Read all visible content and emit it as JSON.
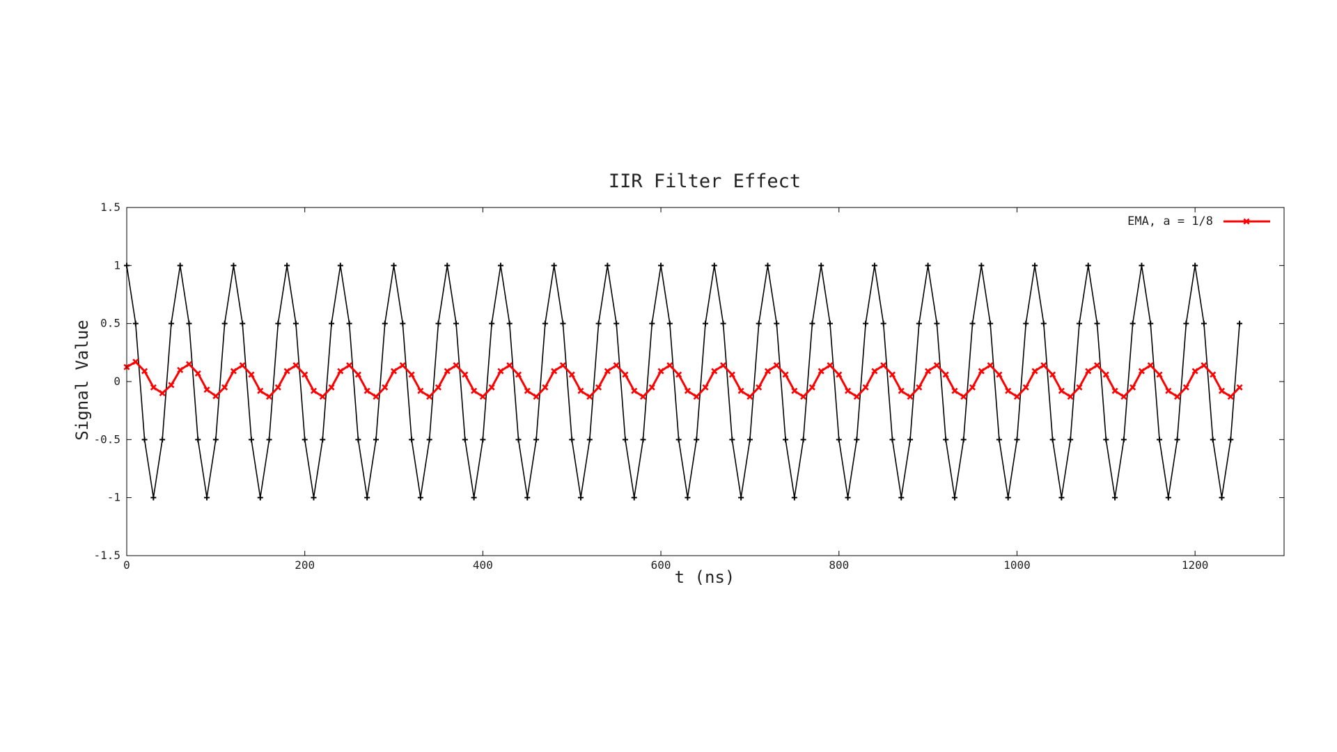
{
  "chart_data": {
    "type": "line",
    "title": "IIR Filter Effect",
    "xlabel": "t (ns)",
    "ylabel": "Signal Value",
    "xlim": [
      0,
      1300
    ],
    "ylim": [
      -1.5,
      1.5
    ],
    "x_ticks": [
      0,
      200,
      400,
      600,
      800,
      1000,
      1200
    ],
    "y_ticks": [
      -1.5,
      -1,
      -0.5,
      0,
      0.5,
      1,
      1.5
    ],
    "x_tick_labels": [
      "0",
      "200",
      "400",
      "600",
      "800",
      "1000",
      "1200"
    ],
    "y_tick_labels": [
      "-1.5",
      "-1",
      "-0.5",
      "0",
      "0.5",
      "1",
      "1.5"
    ],
    "grid": false,
    "legend_position": "top-right",
    "series": [
      {
        "name": "",
        "color": "#000000",
        "marker": "plus",
        "x": [
          0,
          10,
          20,
          30,
          40,
          50,
          60,
          70,
          80,
          90,
          100,
          110,
          120,
          130,
          140,
          150,
          160,
          170,
          180,
          190,
          200,
          210,
          220,
          230,
          240,
          250,
          260,
          270,
          280,
          290,
          300,
          310,
          320,
          330,
          340,
          350,
          360,
          370,
          380,
          390,
          400,
          410,
          420,
          430,
          440,
          450,
          460,
          470,
          480,
          490,
          500,
          510,
          520,
          530,
          540,
          550,
          560,
          570,
          580,
          590,
          600,
          610,
          620,
          630,
          640,
          650,
          660,
          670,
          680,
          690,
          700,
          710,
          720,
          730,
          740,
          750,
          760,
          770,
          780,
          790,
          800,
          810,
          820,
          830,
          840,
          850,
          860,
          870,
          880,
          890,
          900,
          910,
          920,
          930,
          940,
          950,
          960,
          970,
          980,
          990,
          1000,
          1010,
          1020,
          1030,
          1040,
          1050,
          1060,
          1070,
          1080,
          1090,
          1100,
          1110,
          1120,
          1130,
          1140,
          1150,
          1160,
          1170,
          1180,
          1190,
          1200,
          1210,
          1220,
          1230,
          1240,
          1250
        ],
        "y": [
          1,
          0.5,
          -0.5,
          -1,
          -0.5,
          0.5,
          1,
          0.5,
          -0.5,
          -1,
          -0.5,
          0.5,
          1,
          0.5,
          -0.5,
          -1,
          -0.5,
          0.5,
          1,
          0.5,
          -0.5,
          -1,
          -0.5,
          0.5,
          1,
          0.5,
          -0.5,
          -1,
          -0.5,
          0.5,
          1,
          0.5,
          -0.5,
          -1,
          -0.5,
          0.5,
          1,
          0.5,
          -0.5,
          -1,
          -0.5,
          0.5,
          1,
          0.5,
          -0.5,
          -1,
          -0.5,
          0.5,
          1,
          0.5,
          -0.5,
          -1,
          -0.5,
          0.5,
          1,
          0.5,
          -0.5,
          -1,
          -0.5,
          0.5,
          1,
          0.5,
          -0.5,
          -1,
          -0.5,
          0.5,
          1,
          0.5,
          -0.5,
          -1,
          -0.5,
          0.5,
          1,
          0.5,
          -0.5,
          -1,
          -0.5,
          0.5,
          1,
          0.5,
          -0.5,
          -1,
          -0.5,
          0.5,
          1,
          0.5,
          -0.5,
          -1,
          -0.5,
          0.5,
          1,
          0.5,
          -0.5,
          -1,
          -0.5,
          0.5,
          1,
          0.5,
          -0.5,
          -1,
          -0.5,
          0.5,
          1,
          0.5,
          -0.5,
          -1,
          -0.5,
          0.5,
          1,
          0.5,
          -0.5,
          -1,
          -0.5,
          0.5,
          1,
          0.5,
          -0.5,
          -1,
          -0.5,
          0.5,
          1,
          0.5,
          -0.5,
          -1,
          -0.5,
          0.5
        ]
      },
      {
        "name": "EMA, a = 1/8",
        "color": "#ff0000",
        "marker": "x",
        "x": [
          0,
          10,
          20,
          30,
          40,
          50,
          60,
          70,
          80,
          90,
          100,
          110,
          120,
          130,
          140,
          150,
          160,
          170,
          180,
          190,
          200,
          210,
          220,
          230,
          240,
          250,
          260,
          270,
          280,
          290,
          300,
          310,
          320,
          330,
          340,
          350,
          360,
          370,
          380,
          390,
          400,
          410,
          420,
          430,
          440,
          450,
          460,
          470,
          480,
          490,
          500,
          510,
          520,
          530,
          540,
          550,
          560,
          570,
          580,
          590,
          600,
          610,
          620,
          630,
          640,
          650,
          660,
          670,
          680,
          690,
          700,
          710,
          720,
          730,
          740,
          750,
          760,
          770,
          780,
          790,
          800,
          810,
          820,
          830,
          840,
          850,
          860,
          870,
          880,
          890,
          900,
          910,
          920,
          930,
          940,
          950,
          960,
          970,
          980,
          990,
          1000,
          1010,
          1020,
          1030,
          1040,
          1050,
          1060,
          1070,
          1080,
          1090,
          1100,
          1110,
          1120,
          1130,
          1140,
          1150,
          1160,
          1170,
          1180,
          1190,
          1200,
          1210,
          1220,
          1230,
          1240,
          1250
        ],
        "y": [
          0.125,
          0.17,
          0.09,
          -0.05,
          -0.1,
          -0.03,
          0.1,
          0.15,
          0.07,
          -0.07,
          -0.125,
          -0.05,
          0.09,
          0.14,
          0.06,
          -0.08,
          -0.13,
          -0.05,
          0.09,
          0.14,
          0.06,
          -0.08,
          -0.13,
          -0.05,
          0.09,
          0.14,
          0.06,
          -0.08,
          -0.13,
          -0.05,
          0.09,
          0.14,
          0.06,
          -0.08,
          -0.13,
          -0.05,
          0.09,
          0.14,
          0.06,
          -0.08,
          -0.13,
          -0.05,
          0.09,
          0.14,
          0.06,
          -0.08,
          -0.13,
          -0.05,
          0.09,
          0.14,
          0.06,
          -0.08,
          -0.13,
          -0.05,
          0.09,
          0.14,
          0.06,
          -0.08,
          -0.13,
          -0.05,
          0.09,
          0.14,
          0.06,
          -0.08,
          -0.13,
          -0.05,
          0.09,
          0.14,
          0.06,
          -0.08,
          -0.13,
          -0.05,
          0.09,
          0.14,
          0.06,
          -0.08,
          -0.13,
          -0.05,
          0.09,
          0.14,
          0.06,
          -0.08,
          -0.13,
          -0.05,
          0.09,
          0.14,
          0.06,
          -0.08,
          -0.13,
          -0.05,
          0.09,
          0.14,
          0.06,
          -0.08,
          -0.13,
          -0.05,
          0.09,
          0.14,
          0.06,
          -0.08,
          -0.13,
          -0.05,
          0.09,
          0.14,
          0.06,
          -0.08,
          -0.13,
          -0.05,
          0.09,
          0.14,
          0.06,
          -0.08,
          -0.13,
          -0.05,
          0.09,
          0.14,
          0.06,
          -0.08,
          -0.13,
          -0.05,
          0.09,
          0.14,
          0.06,
          -0.08,
          -0.13,
          -0.05
        ]
      }
    ]
  }
}
